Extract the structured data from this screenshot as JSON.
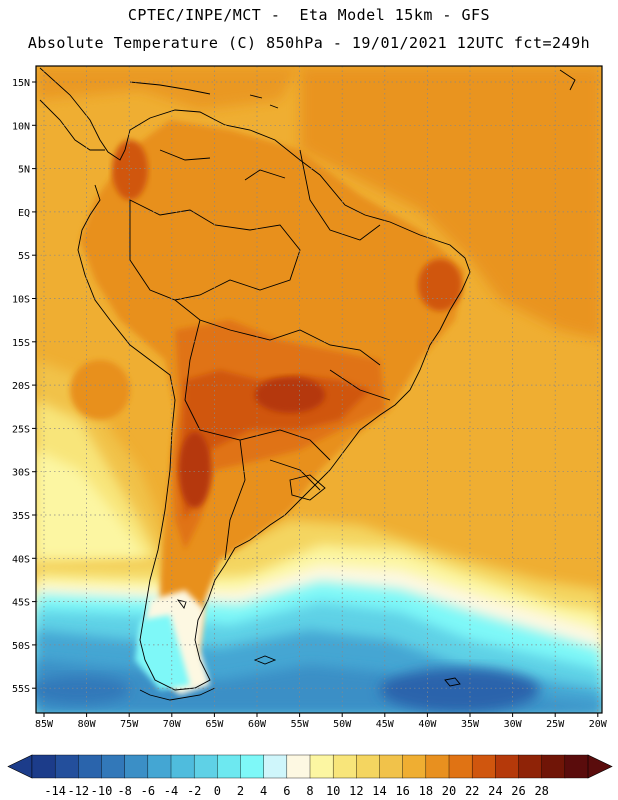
{
  "header": {
    "line1": "CPTEC/INPE/MCT -  Eta Model 15km - GFS",
    "line2": "Absolute Temperature (C) 850hPa - 19/01/2021 12UTC fct=249h"
  },
  "map": {
    "lat_labels": [
      "15N",
      "10N",
      "5N",
      "EQ",
      "5S",
      "10S",
      "15S",
      "20S",
      "25S",
      "30S",
      "35S",
      "40S",
      "45S",
      "50S",
      "55S"
    ],
    "lon_labels": [
      "85W",
      "80W",
      "75W",
      "70W",
      "65W",
      "60W",
      "55W",
      "50W",
      "45W",
      "40W",
      "35W",
      "30W",
      "25W",
      "20W"
    ]
  },
  "colorbar": {
    "labels": [
      "-14",
      "-12",
      "-10",
      "-8",
      "-6",
      "-4",
      "-2",
      "0",
      "2",
      "4",
      "6",
      "8",
      "10",
      "12",
      "14",
      "16",
      "18",
      "20",
      "22",
      "24",
      "26",
      "28"
    ],
    "colors": [
      "#1c3c8a",
      "#234f9c",
      "#2a64ac",
      "#3278b9",
      "#3b8fc6",
      "#44a6d3",
      "#4fbcdd",
      "#5fd1e6",
      "#6de8f0",
      "#7ef8f8",
      "#cff6fb",
      "#fdf8e2",
      "#fcf6a2",
      "#f8e57a",
      "#f4d560",
      "#f1c24a",
      "#efae32",
      "#e8901f",
      "#e07314",
      "#d0560e",
      "#b5390a",
      "#8f2307",
      "#701507",
      "#5a0c0c"
    ]
  }
}
